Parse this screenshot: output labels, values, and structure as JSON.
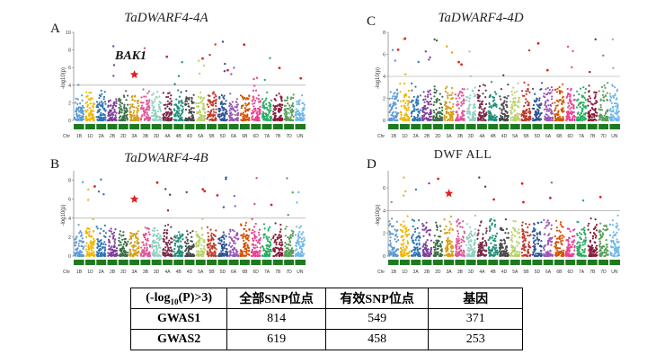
{
  "panels": [
    {
      "letter": "A",
      "title": "TaDWARF4-4A",
      "title_style": "italic",
      "yticks": [
        "0",
        "2",
        "4",
        "6",
        "8",
        "10"
      ],
      "ymax": 10,
      "threshold": 4,
      "gene_label": "BAK1",
      "star": {
        "chrom": "3A",
        "y": 5.2
      }
    },
    {
      "letter": "C",
      "title": "TaDWARF4-4D",
      "title_style": "italic",
      "yticks": [
        "0",
        "2",
        "4",
        "6",
        "8"
      ],
      "ymax": 8,
      "threshold": 4,
      "gene_label": "",
      "star": null
    },
    {
      "letter": "B",
      "title": "TaDWARF4-4B",
      "title_style": "italic",
      "yticks": [
        "0",
        "2",
        "4",
        "6",
        "8"
      ],
      "ymax": 9,
      "threshold": 4,
      "gene_label": "",
      "star": {
        "chrom": "3A",
        "y": 6
      }
    },
    {
      "letter": "D",
      "title": "DWF ALL",
      "title_style": "upright",
      "yticks": [
        "0",
        "2",
        "4",
        "6"
      ],
      "ymax": 7.5,
      "threshold": 4,
      "gene_label": "",
      "star": {
        "chrom": "3A",
        "y": 5.5
      }
    }
  ],
  "ylabel": "-log10(p)",
  "chromosomes": [
    "Chr",
    "1B",
    "1D",
    "2A",
    "2B",
    "2D",
    "3A",
    "3B",
    "3D",
    "4A",
    "4B",
    "4D",
    "5A",
    "5B",
    "5D",
    "6A",
    "6B",
    "6D",
    "7A",
    "7B",
    "7D",
    "UN"
  ],
  "chrom_colors": [
    "#5b9bd5",
    "#f2b705",
    "#2e75b6",
    "#7f3f98",
    "#3c6e47",
    "#d4a017",
    "#e0559a",
    "#8fd1c0",
    "#7a2a48",
    "#1f8f7a",
    "#4a4a4a",
    "#b9d36a",
    "#c0392b",
    "#2f5597",
    "#9b59b6",
    "#d35400",
    "#e84393",
    "#27ae60",
    "#8b1a3a",
    "#5a9e5a",
    "#6fb8e8",
    "#f0c420"
  ],
  "table": {
    "header_prefix": "(-log",
    "header_sub": "10",
    "header_suffix": "(P)>3)",
    "columns": [
      "全部SNP位点",
      "有效SNP位点",
      "基因"
    ],
    "rows": [
      {
        "label": "GWAS1",
        "values": [
          "814",
          "549",
          "371"
        ]
      },
      {
        "label": "GWAS2",
        "values": [
          "619",
          "458",
          "253"
        ]
      }
    ]
  }
}
